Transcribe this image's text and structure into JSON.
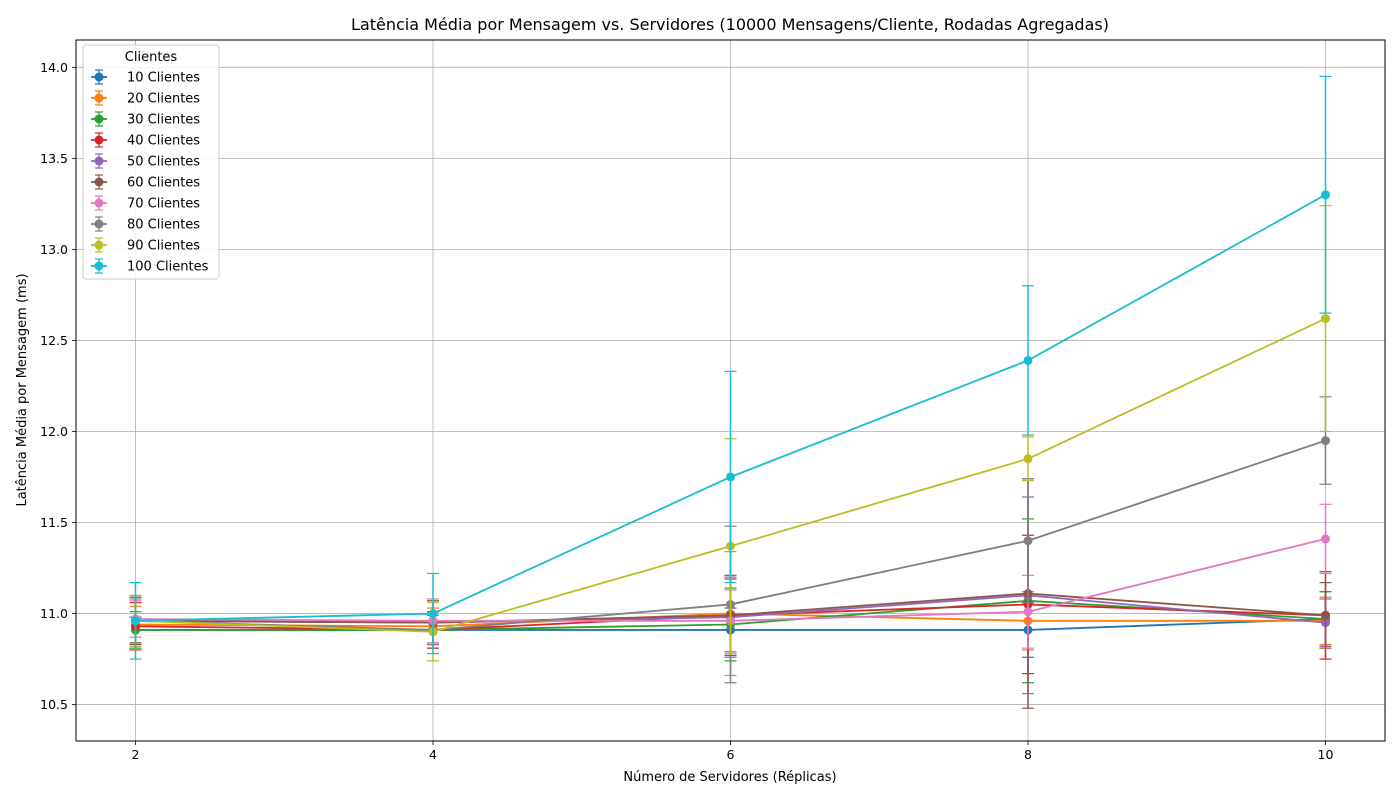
{
  "chart_data": {
    "type": "line",
    "title": "Latência Média por Mensagem vs. Servidores (10000 Mensagens/Cliente, Rodadas Agregadas)",
    "xlabel": "Número de Servidores (Réplicas)",
    "ylabel": "Latência Média por Mensagem (ms)",
    "x": [
      2,
      4,
      6,
      8,
      10
    ],
    "xticks": [
      "2",
      "4",
      "6",
      "8",
      "10"
    ],
    "yticks": [
      "10.5",
      "11.0",
      "11.5",
      "12.0",
      "12.5",
      "13.0",
      "13.5",
      "14.0"
    ],
    "xlim": [
      1.6,
      10.4
    ],
    "ylim": [
      10.3,
      14.15
    ],
    "grid": true,
    "error_bars": true,
    "legend": {
      "title": "Clientes",
      "placement": "top-left"
    },
    "series": [
      {
        "name": "10 Clientes",
        "color": "#1f77b4",
        "values": [
          10.91,
          10.91,
          10.91,
          10.91,
          10.97
        ],
        "errors": [
          0.07,
          0.08,
          0.12,
          0.15,
          0.15
        ]
      },
      {
        "name": "20 Clientes",
        "color": "#ff7f0e",
        "values": [
          10.94,
          10.93,
          11.0,
          10.96,
          10.96
        ],
        "errors": [
          0.1,
          0.1,
          0.34,
          0.16,
          0.13
        ]
      },
      {
        "name": "30 Clientes",
        "color": "#2ca02c",
        "values": [
          10.91,
          10.91,
          10.94,
          11.07,
          10.97
        ],
        "errors": [
          0.1,
          0.1,
          0.2,
          0.45,
          0.15
        ]
      },
      {
        "name": "40 Clientes",
        "color": "#d62728",
        "values": [
          10.93,
          10.91,
          10.99,
          11.05,
          10.99
        ],
        "errors": [
          0.13,
          0.1,
          0.2,
          0.38,
          0.24
        ]
      },
      {
        "name": "50 Clientes",
        "color": "#9467bd",
        "values": [
          10.96,
          10.95,
          10.98,
          11.1,
          10.95
        ],
        "errors": [
          0.13,
          0.12,
          0.22,
          0.54,
          0.13
        ]
      },
      {
        "name": "60 Clientes",
        "color": "#8c564b",
        "values": [
          10.96,
          10.95,
          10.99,
          11.11,
          10.99
        ],
        "errors": [
          0.13,
          0.12,
          0.22,
          0.63,
          0.18
        ]
      },
      {
        "name": "70 Clientes",
        "color": "#e377c2",
        "values": [
          10.97,
          10.96,
          10.96,
          11.01,
          11.41
        ],
        "errors": [
          0.1,
          0.12,
          0.17,
          0.2,
          0.19
        ]
      },
      {
        "name": "80 Clientes",
        "color": "#7f7f7f",
        "values": [
          10.96,
          10.91,
          11.05,
          11.4,
          11.95
        ],
        "errors": [
          0.12,
          0.08,
          0.43,
          0.34,
          0.24
        ]
      },
      {
        "name": "90 Clientes",
        "color": "#bcbd22",
        "values": [
          10.96,
          10.9,
          11.37,
          11.85,
          12.62
        ],
        "errors": [
          0.14,
          0.16,
          0.59,
          0.12,
          0.62
        ]
      },
      {
        "name": "100 Clientes",
        "color": "#17becf",
        "values": [
          10.96,
          11.0,
          11.75,
          12.39,
          13.3
        ],
        "errors": [
          0.21,
          0.22,
          0.58,
          0.41,
          0.65
        ]
      }
    ]
  }
}
